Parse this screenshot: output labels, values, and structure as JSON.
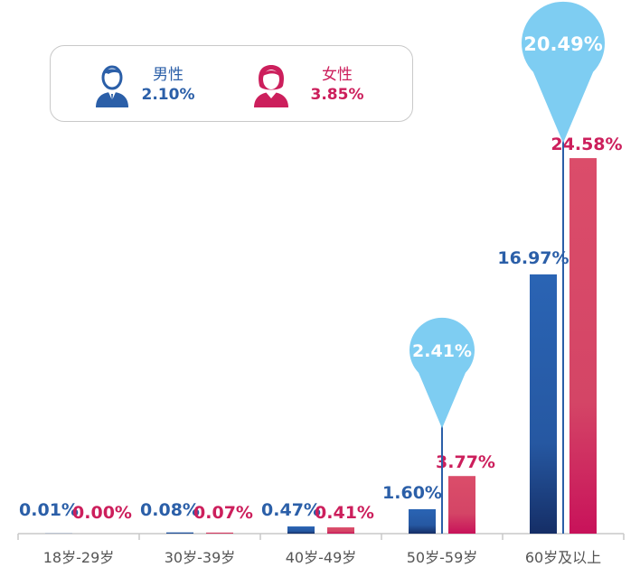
{
  "colors": {
    "male": "#2b5fa8",
    "female": "#cc1f5c",
    "total": "#7ecdf2",
    "axis": "#c8c8c8",
    "tick_text": "#555555"
  },
  "legend": {
    "male": {
      "label": "男性",
      "value": "2.10%",
      "icon": "male-user-icon"
    },
    "female": {
      "label": "女性",
      "value": "3.85%",
      "icon": "female-user-icon"
    }
  },
  "chart_data": {
    "type": "bar",
    "title": "",
    "xlabel": "",
    "ylabel": "",
    "ylim": [
      0,
      25
    ],
    "grid": false,
    "legend_position": "top-left",
    "categories": [
      "18岁-29岁",
      "30岁-39岁",
      "40岁-49岁",
      "50岁-59岁",
      "60岁及以上"
    ],
    "series": [
      {
        "name": "男性",
        "values": [
          0.01,
          0.08,
          0.47,
          1.6,
          16.97
        ],
        "labels": [
          "0.01%",
          "0.08%",
          "0.47%",
          "1.60%",
          "16.97%"
        ]
      },
      {
        "name": "女性",
        "values": [
          0.0,
          0.07,
          0.41,
          3.77,
          24.58
        ],
        "labels": [
          "0.00%",
          "0.07%",
          "0.41%",
          "3.77%",
          "24.58%"
        ]
      }
    ],
    "totals": [
      {
        "category_index": 3,
        "value": 2.41,
        "label": "2.41%"
      },
      {
        "category_index": 4,
        "value": 20.49,
        "label": "20.49%"
      }
    ]
  }
}
